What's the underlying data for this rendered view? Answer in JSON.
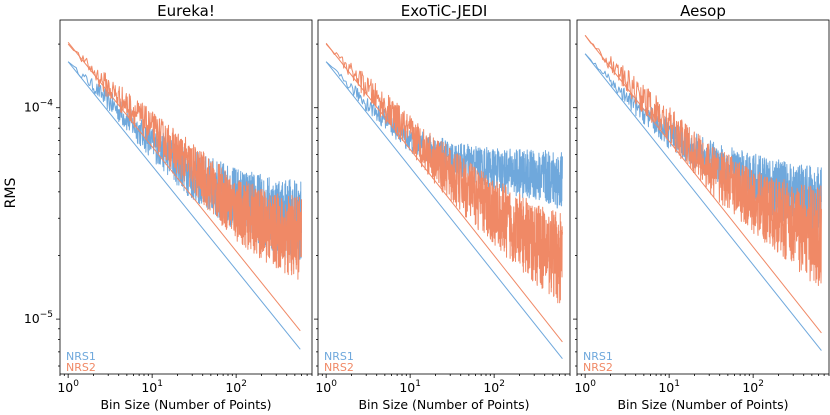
{
  "chart_data": {
    "type": "line",
    "ylabel": "RMS",
    "xscale": "log",
    "yscale": "log",
    "xlim": [
      0.8,
      800
    ],
    "ylim": [
      5.5e-06,
      0.00026
    ],
    "x_tick_values": [
      1,
      10,
      100
    ],
    "x_tick_labels": [
      {
        "base": "10",
        "exp": "0"
      },
      {
        "base": "10",
        "exp": "1"
      },
      {
        "base": "10",
        "exp": "2"
      }
    ],
    "y_tick_values": [
      1e-05,
      0.0001
    ],
    "y_tick_labels": [
      {
        "base": "10",
        "exp": "−5"
      },
      {
        "base": "10",
        "exp": "−4"
      }
    ],
    "colors": {
      "NRS1": "#6fa8dc",
      "NRS2": "#f08966"
    },
    "panels": [
      {
        "title": "Eureka!",
        "xlabel": "Bin Size (Number of Points)",
        "legend": [
          "NRS1",
          "NRS2"
        ],
        "series": [
          {
            "name": "NRS1",
            "kind": "measured",
            "x": [
              1,
              3,
              10,
              30,
              100,
              300,
              600
            ],
            "rms": [
              0.000165,
              0.000108,
              6.8e-05,
              4.8e-05,
              3.7e-05,
              3.1e-05,
              2.85e-05
            ],
            "spread": [
              0.0,
              0.05,
              0.08,
              0.12,
              0.15,
              0.18,
              0.2
            ]
          },
          {
            "name": "NRS2",
            "kind": "measured",
            "x": [
              1,
              3,
              10,
              30,
              100,
              300,
              600
            ],
            "rms": [
              0.0002,
              0.000125,
              8e-05,
              5.2e-05,
              3.3e-05,
              2.6e-05,
              2.4e-05
            ],
            "spread": [
              0.0,
              0.06,
              0.08,
              0.12,
              0.15,
              0.18,
              0.2
            ]
          },
          {
            "name": "NRS1",
            "kind": "expected",
            "x": [
              1,
              580
            ],
            "rms": [
              0.000165,
              7.2e-06
            ]
          },
          {
            "name": "NRS2",
            "kind": "expected",
            "x": [
              1,
              580
            ],
            "rms": [
              0.000204,
              8.8e-06
            ]
          }
        ]
      },
      {
        "title": "ExoTiC-JEDI",
        "xlabel": "Bin Size (Number of Points)",
        "legend": [
          "NRS1",
          "NRS2"
        ],
        "series": [
          {
            "name": "NRS1",
            "kind": "measured",
            "x": [
              1,
              3,
              10,
              30,
              100,
              300,
              650
            ],
            "rms": [
              0.000165,
              0.000105,
              7e-05,
              5.8e-05,
              5.1e-05,
              4.8e-05,
              4.5e-05
            ],
            "spread": [
              0.0,
              0.04,
              0.06,
              0.08,
              0.1,
              0.12,
              0.14
            ]
          },
          {
            "name": "NRS2",
            "kind": "measured",
            "x": [
              1,
              3,
              10,
              30,
              100,
              300,
              650
            ],
            "rms": [
              0.0002,
              0.000125,
              7.5e-05,
              4.8e-05,
              3.2e-05,
              2.3e-05,
              1.9e-05
            ],
            "spread": [
              0.0,
              0.06,
              0.09,
              0.13,
              0.16,
              0.19,
              0.22
            ]
          },
          {
            "name": "NRS1",
            "kind": "expected",
            "x": [
              1,
              650
            ],
            "rms": [
              0.000165,
              6.5e-06
            ]
          },
          {
            "name": "NRS2",
            "kind": "expected",
            "x": [
              1,
              650
            ],
            "rms": [
              0.000202,
              7.8e-06
            ]
          }
        ]
      },
      {
        "title": "Aesop",
        "xlabel": "Bin Size (Number of Points)",
        "legend": [
          "NRS1",
          "NRS2"
        ],
        "series": [
          {
            "name": "NRS1",
            "kind": "measured",
            "x": [
              1,
              3,
              10,
              30,
              100,
              300,
              650
            ],
            "rms": [
              0.00018,
              0.000112,
              7.5e-05,
              5.7e-05,
              4.6e-05,
              3.9e-05,
              3.5e-05
            ],
            "spread": [
              0.0,
              0.04,
              0.07,
              0.09,
              0.12,
              0.15,
              0.18
            ]
          },
          {
            "name": "NRS2",
            "kind": "measured",
            "x": [
              1,
              3,
              10,
              30,
              100,
              300,
              650
            ],
            "rms": [
              0.00022,
              0.000135,
              8.2e-05,
              5.2e-05,
              3.6e-05,
              2.8e-05,
              2.4e-05
            ],
            "spread": [
              0.0,
              0.06,
              0.09,
              0.12,
              0.15,
              0.2,
              0.25
            ]
          },
          {
            "name": "NRS1",
            "kind": "expected",
            "x": [
              1,
              650
            ],
            "rms": [
              0.00018,
              7.1e-06
            ]
          },
          {
            "name": "NRS2",
            "kind": "expected",
            "x": [
              1,
              650
            ],
            "rms": [
              0.00022,
              8.6e-06
            ]
          }
        ]
      }
    ]
  }
}
